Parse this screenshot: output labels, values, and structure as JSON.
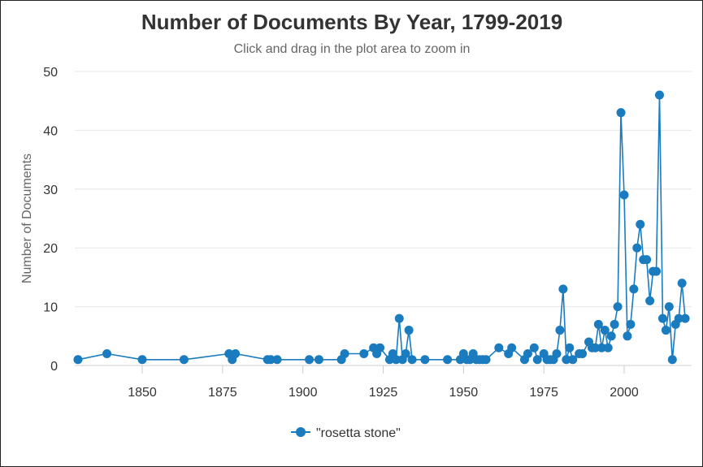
{
  "chart_data": {
    "type": "line",
    "title": "Number of Documents By Year, 1799-2019",
    "subtitle": "Click and drag in the plot area to zoom in",
    "ylabel": "Number of Documents",
    "xlabel": "",
    "xlim": [
      1829,
      2021
    ],
    "ylim": [
      0,
      50
    ],
    "x_ticks": [
      1850,
      1875,
      1900,
      1925,
      1950,
      1975,
      2000
    ],
    "y_ticks": [
      0,
      10,
      20,
      30,
      40,
      50
    ],
    "grid": "horizontal",
    "legend": "bottom-center",
    "color": "#1a7bbf",
    "series": [
      {
        "name": "\"rosetta stone\"",
        "x": [
          1830,
          1839,
          1850,
          1863,
          1877,
          1878,
          1879,
          1889,
          1890,
          1892,
          1902,
          1905,
          1912,
          1913,
          1919,
          1922,
          1923,
          1924,
          1927,
          1928,
          1929,
          1930,
          1931,
          1932,
          1933,
          1934,
          1938,
          1945,
          1949,
          1950,
          1951,
          1952,
          1953,
          1954,
          1955,
          1956,
          1957,
          1961,
          1964,
          1965,
          1969,
          1970,
          1972,
          1973,
          1975,
          1976,
          1977,
          1978,
          1979,
          1980,
          1981,
          1982,
          1983,
          1984,
          1986,
          1987,
          1989,
          1990,
          1991,
          1992,
          1993,
          1994,
          1995,
          1996,
          1997,
          1998,
          1999,
          2000,
          2001,
          2002,
          2003,
          2004,
          2005,
          2006,
          2007,
          2008,
          2009,
          2010,
          2011,
          2012,
          2013,
          2014,
          2015,
          2016,
          2017,
          2018,
          2019
        ],
        "values": [
          1,
          2,
          1,
          1,
          2,
          1,
          2,
          1,
          1,
          1,
          1,
          1,
          1,
          2,
          2,
          3,
          2,
          3,
          1,
          2,
          1,
          8,
          1,
          2,
          6,
          1,
          1,
          1,
          1,
          2,
          1,
          1,
          2,
          1,
          1,
          1,
          1,
          3,
          2,
          3,
          1,
          2,
          3,
          1,
          2,
          1,
          1,
          1,
          2,
          6,
          13,
          1,
          3,
          1,
          2,
          2,
          4,
          3,
          3,
          7,
          3,
          6,
          3,
          5,
          7,
          10,
          43,
          29,
          5,
          7,
          13,
          20,
          24,
          18,
          18,
          11,
          16,
          16,
          46,
          8,
          6,
          10,
          1,
          7,
          8,
          14,
          8
        ]
      }
    ]
  }
}
